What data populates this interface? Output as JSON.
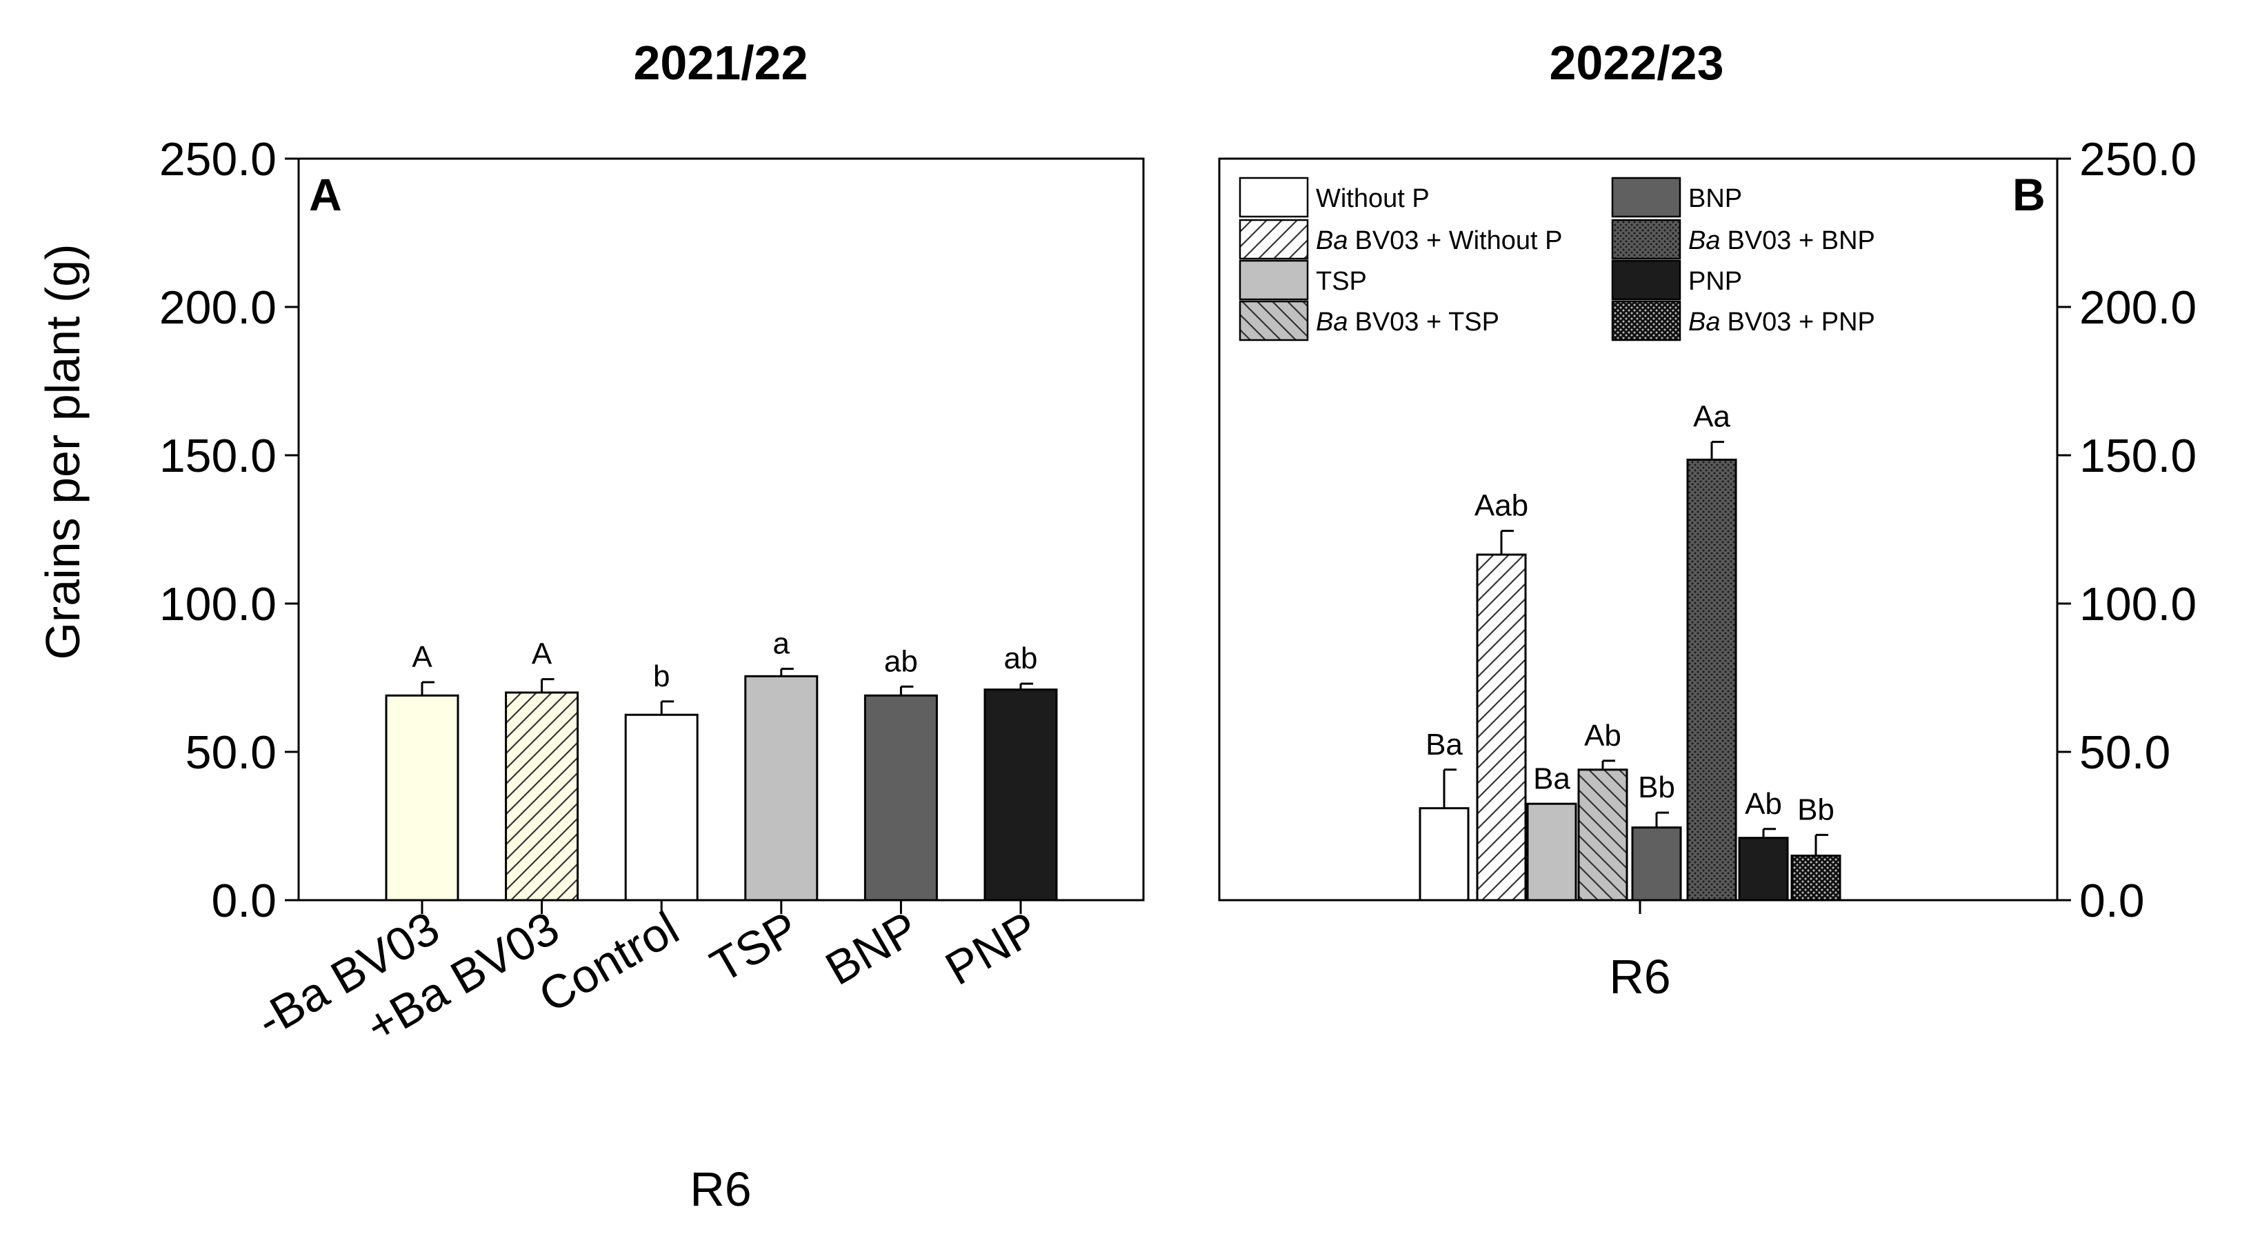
{
  "y_axis_label": "Grains per plant (g)",
  "chart_data": [
    {
      "id": "A",
      "type": "bar",
      "title": "2021/22",
      "panel_letter": "A",
      "xlabel": "R6",
      "ylabel": "Grains per plant (g)",
      "ylim": [
        0,
        250
      ],
      "yticks": [
        "0.0",
        "50.0",
        "100.0",
        "150.0",
        "200.0",
        "250.0"
      ],
      "axis_side": "left",
      "categories": [
        "-Ba BV03",
        "+Ba BV03",
        "Control",
        "TSP",
        "BNP",
        "PNP"
      ],
      "values": [
        69,
        70,
        62.5,
        75.5,
        69,
        71
      ],
      "errors": [
        4.5,
        4.5,
        4.5,
        2.5,
        3,
        2
      ],
      "labels": [
        "A",
        "A",
        "b",
        "a",
        "ab",
        "ab"
      ],
      "fills": [
        "#ffffe6",
        "hatch-yellow",
        "#ffffff",
        "#c0c0c0",
        "#606060",
        "#1c1c1c"
      ],
      "grid": false
    },
    {
      "id": "B",
      "type": "bar",
      "title": "2022/23",
      "panel_letter": "B",
      "xlabel": "R6",
      "ylabel": "Grains per plant (g)",
      "ylim": [
        0,
        250
      ],
      "yticks": [
        "0.0",
        "50.0",
        "100.0",
        "150.0",
        "200.0",
        "250.0"
      ],
      "axis_side": "right",
      "categories": [
        "R6"
      ],
      "series": [
        {
          "name": "Without P",
          "name_prefix": "",
          "values": [
            31
          ],
          "error": 13,
          "label": "Ba",
          "fill": "#ffffff"
        },
        {
          "name": "BV03 + Without P",
          "name_prefix": "Ba",
          "values": [
            116.5
          ],
          "error": 8,
          "label": "Aab",
          "fill": "hatch-diag"
        },
        {
          "name": "TSP",
          "name_prefix": "",
          "values": [
            32.5
          ],
          "error": 0,
          "label": "Ba",
          "fill": "#c0c0c0"
        },
        {
          "name": "BV03 + TSP",
          "name_prefix": "Ba",
          "values": [
            44
          ],
          "error": 3,
          "label": "Ab",
          "fill": "hatch-gray"
        },
        {
          "name": "BNP",
          "name_prefix": "",
          "values": [
            24.5
          ],
          "error": 5,
          "label": "Bb",
          "fill": "#606060"
        },
        {
          "name": "BV03 + BNP",
          "name_prefix": "Ba",
          "values": [
            148.5
          ],
          "error": 6,
          "label": "Aa",
          "fill": "dots-dark"
        },
        {
          "name": "PNP",
          "name_prefix": "",
          "values": [
            21
          ],
          "error": 3,
          "label": "Ab",
          "fill": "#1c1c1c"
        },
        {
          "name": "BV03 + PNP",
          "name_prefix": "Ba",
          "values": [
            15
          ],
          "error": 7,
          "label": "Bb",
          "fill": "dots-black"
        }
      ],
      "legend": "top-left",
      "grid": false
    }
  ]
}
